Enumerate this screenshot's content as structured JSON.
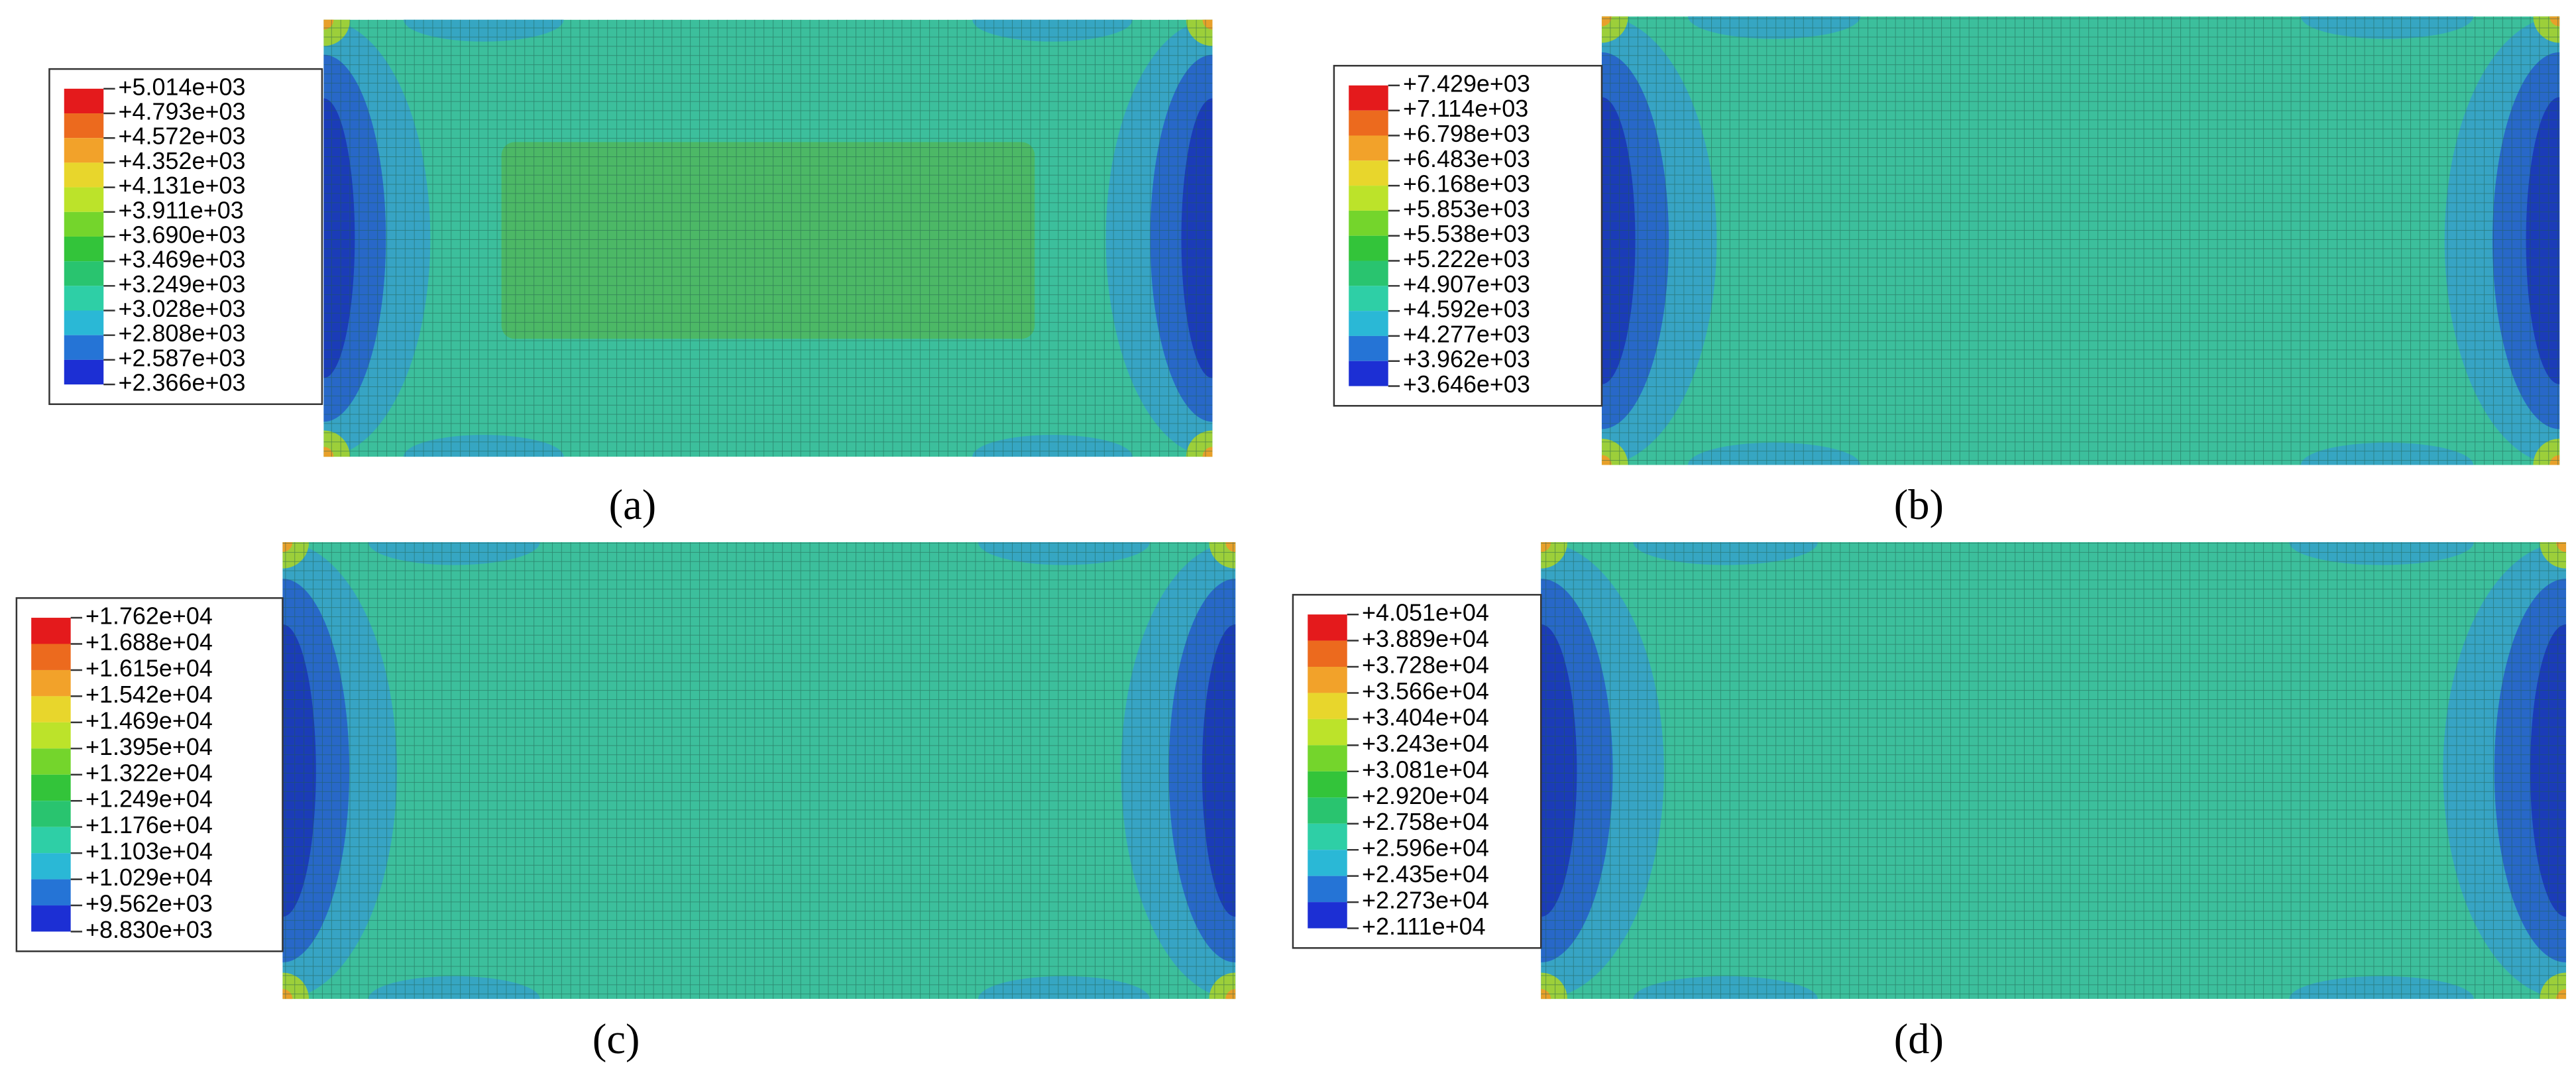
{
  "panels": [
    {
      "label": "(a)",
      "legend": [
        "+5.014e+03",
        "+4.793e+03",
        "+4.572e+03",
        "+4.352e+03",
        "+4.131e+03",
        "+3.911e+03",
        "+3.690e+03",
        "+3.469e+03",
        "+3.249e+03",
        "+3.028e+03",
        "+2.808e+03",
        "+2.587e+03",
        "+2.366e+03"
      ]
    },
    {
      "label": "(b)",
      "legend": [
        "+7.429e+03",
        "+7.114e+03",
        "+6.798e+03",
        "+6.483e+03",
        "+6.168e+03",
        "+5.853e+03",
        "+5.538e+03",
        "+5.222e+03",
        "+4.907e+03",
        "+4.592e+03",
        "+4.277e+03",
        "+3.962e+03",
        "+3.646e+03"
      ]
    },
    {
      "label": "(c)",
      "legend": [
        "+1.762e+04",
        "+1.688e+04",
        "+1.615e+04",
        "+1.542e+04",
        "+1.469e+04",
        "+1.395e+04",
        "+1.322e+04",
        "+1.249e+04",
        "+1.176e+04",
        "+1.103e+04",
        "+1.029e+04",
        "+9.562e+03",
        "+8.830e+03"
      ]
    },
    {
      "label": "(d)",
      "legend": [
        "+4.051e+04",
        "+3.889e+04",
        "+3.728e+04",
        "+3.566e+04",
        "+3.404e+04",
        "+3.243e+04",
        "+3.081e+04",
        "+2.920e+04",
        "+2.758e+04",
        "+2.596e+04",
        "+2.435e+04",
        "+2.273e+04",
        "+2.111e+04"
      ]
    }
  ]
}
